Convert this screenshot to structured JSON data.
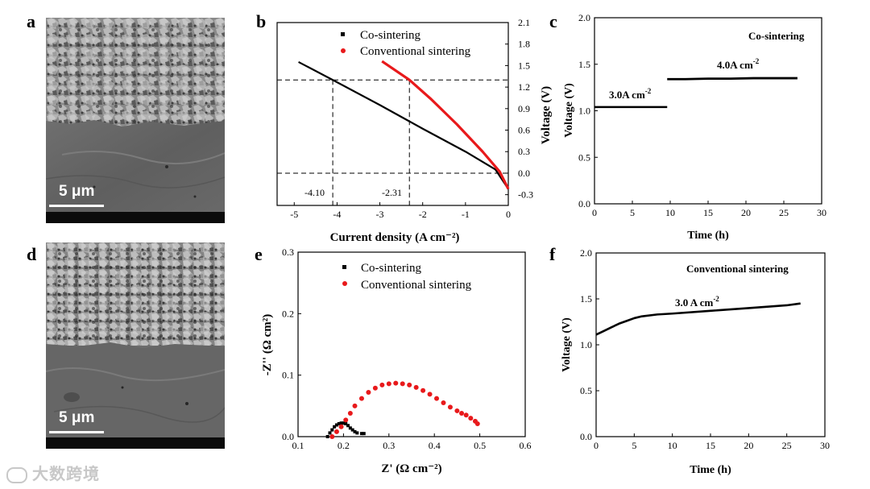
{
  "panels": {
    "a": "a",
    "b": "b",
    "c": "c",
    "d": "d",
    "e": "e",
    "f": "f"
  },
  "sem": {
    "a_scale": "5 μm",
    "d_scale": "5 μm"
  },
  "watermark": "大数跨境",
  "chart_data": [
    {
      "id": "b",
      "type": "line",
      "xlabel": "Current density (A cm⁻²)",
      "ylabel": "Voltage (V)",
      "xlim": [
        -5.4,
        0
      ],
      "ylim": [
        -0.45,
        2.1
      ],
      "xticks": [
        -5,
        -4,
        -3,
        -2,
        -1,
        0
      ],
      "yticks": [
        -0.3,
        0.0,
        0.3,
        0.6,
        0.9,
        1.2,
        1.5,
        1.8,
        2.1
      ],
      "series": [
        {
          "name": "Co-sintering",
          "color": "#000000",
          "x": [
            -4.9,
            -4.1,
            -3.0,
            -2.0,
            -1.0,
            -0.3,
            0
          ],
          "y": [
            1.55,
            1.3,
            0.95,
            0.62,
            0.3,
            0.05,
            -0.22
          ]
        },
        {
          "name": "Conventional sintering",
          "color": "#e8191b",
          "x": [
            -2.95,
            -2.31,
            -1.8,
            -1.2,
            -0.6,
            -0.2,
            0
          ],
          "y": [
            1.56,
            1.3,
            1.03,
            0.68,
            0.3,
            0.02,
            -0.22
          ]
        }
      ],
      "annotations": [
        "-4.10",
        "-2.31"
      ],
      "guide_lines": {
        "y": [
          1.3,
          0.0
        ],
        "x": [
          -4.1,
          -2.31
        ]
      }
    },
    {
      "id": "c",
      "type": "line",
      "title": "Co-sintering",
      "xlabel": "Time (h)",
      "ylabel": "Voltage (V)",
      "xlim": [
        0,
        30
      ],
      "ylim": [
        0.0,
        2.0
      ],
      "xticks": [
        0,
        5,
        10,
        15,
        20,
        25,
        30
      ],
      "yticks": [
        0.0,
        0.5,
        1.0,
        1.5,
        2.0
      ],
      "series": [
        {
          "name": "3.0A cm-2",
          "color": "#000000",
          "x": [
            0,
            2,
            4,
            6,
            8,
            9.6
          ],
          "y": [
            1.04,
            1.04,
            1.04,
            1.04,
            1.04,
            1.04
          ]
        },
        {
          "name": "4.0A cm-2",
          "color": "#000000",
          "x": [
            9.6,
            12,
            15,
            18,
            21,
            24,
            26.8
          ],
          "y": [
            1.34,
            1.34,
            1.345,
            1.345,
            1.35,
            1.35,
            1.35
          ]
        }
      ],
      "labels": {
        "seg1": "3.0A cm",
        "seg1_exp": "-2",
        "seg2": "4.0A cm",
        "seg2_exp": "-2"
      }
    },
    {
      "id": "e",
      "type": "scatter",
      "xlabel": "Z' (Ω cm⁻²)",
      "ylabel": "-Z'' (Ω cm²)",
      "xlim": [
        0.1,
        0.6
      ],
      "ylim": [
        0.0,
        0.3
      ],
      "xticks": [
        0.1,
        0.2,
        0.3,
        0.4,
        0.5,
        0.6
      ],
      "yticks": [
        0.0,
        0.1,
        0.2,
        0.3
      ],
      "series": [
        {
          "name": "Co-sintering",
          "color": "#000000",
          "x": [
            0.165,
            0.17,
            0.175,
            0.18,
            0.185,
            0.19,
            0.195,
            0.2,
            0.205,
            0.21,
            0.215,
            0.22,
            0.225,
            0.23,
            0.24,
            0.245
          ],
          "y": [
            0.0,
            0.006,
            0.011,
            0.016,
            0.019,
            0.021,
            0.022,
            0.022,
            0.021,
            0.018,
            0.014,
            0.011,
            0.008,
            0.006,
            0.005,
            0.005
          ]
        },
        {
          "name": "Conventional sintering",
          "color": "#e8191b",
          "x": [
            0.175,
            0.185,
            0.195,
            0.205,
            0.215,
            0.225,
            0.24,
            0.255,
            0.27,
            0.285,
            0.3,
            0.315,
            0.33,
            0.345,
            0.36,
            0.375,
            0.39,
            0.405,
            0.42,
            0.435,
            0.45,
            0.46,
            0.47,
            0.48,
            0.49,
            0.495
          ],
          "y": [
            0.0,
            0.008,
            0.016,
            0.027,
            0.038,
            0.05,
            0.062,
            0.072,
            0.079,
            0.084,
            0.086,
            0.087,
            0.086,
            0.084,
            0.08,
            0.075,
            0.069,
            0.062,
            0.055,
            0.048,
            0.042,
            0.038,
            0.035,
            0.03,
            0.025,
            0.021
          ]
        }
      ]
    },
    {
      "id": "f",
      "type": "line",
      "title": "Conventional sintering",
      "xlabel": "Time (h)",
      "ylabel": "Voltage (V)",
      "xlim": [
        0,
        30
      ],
      "ylim": [
        0.0,
        2.0
      ],
      "xticks": [
        0,
        5,
        10,
        15,
        20,
        25,
        30
      ],
      "yticks": [
        0.0,
        0.5,
        1.0,
        1.5,
        2.0
      ],
      "series": [
        {
          "name": "3.0 A cm-2",
          "color": "#000000",
          "x": [
            0,
            1,
            2,
            3,
            4,
            5,
            6,
            8,
            10,
            15,
            20,
            25,
            26.8
          ],
          "y": [
            1.11,
            1.15,
            1.19,
            1.23,
            1.26,
            1.29,
            1.31,
            1.33,
            1.34,
            1.37,
            1.4,
            1.43,
            1.45
          ]
        }
      ],
      "labels": {
        "seg1": "3.0 A cm",
        "seg1_exp": "-2"
      }
    }
  ]
}
